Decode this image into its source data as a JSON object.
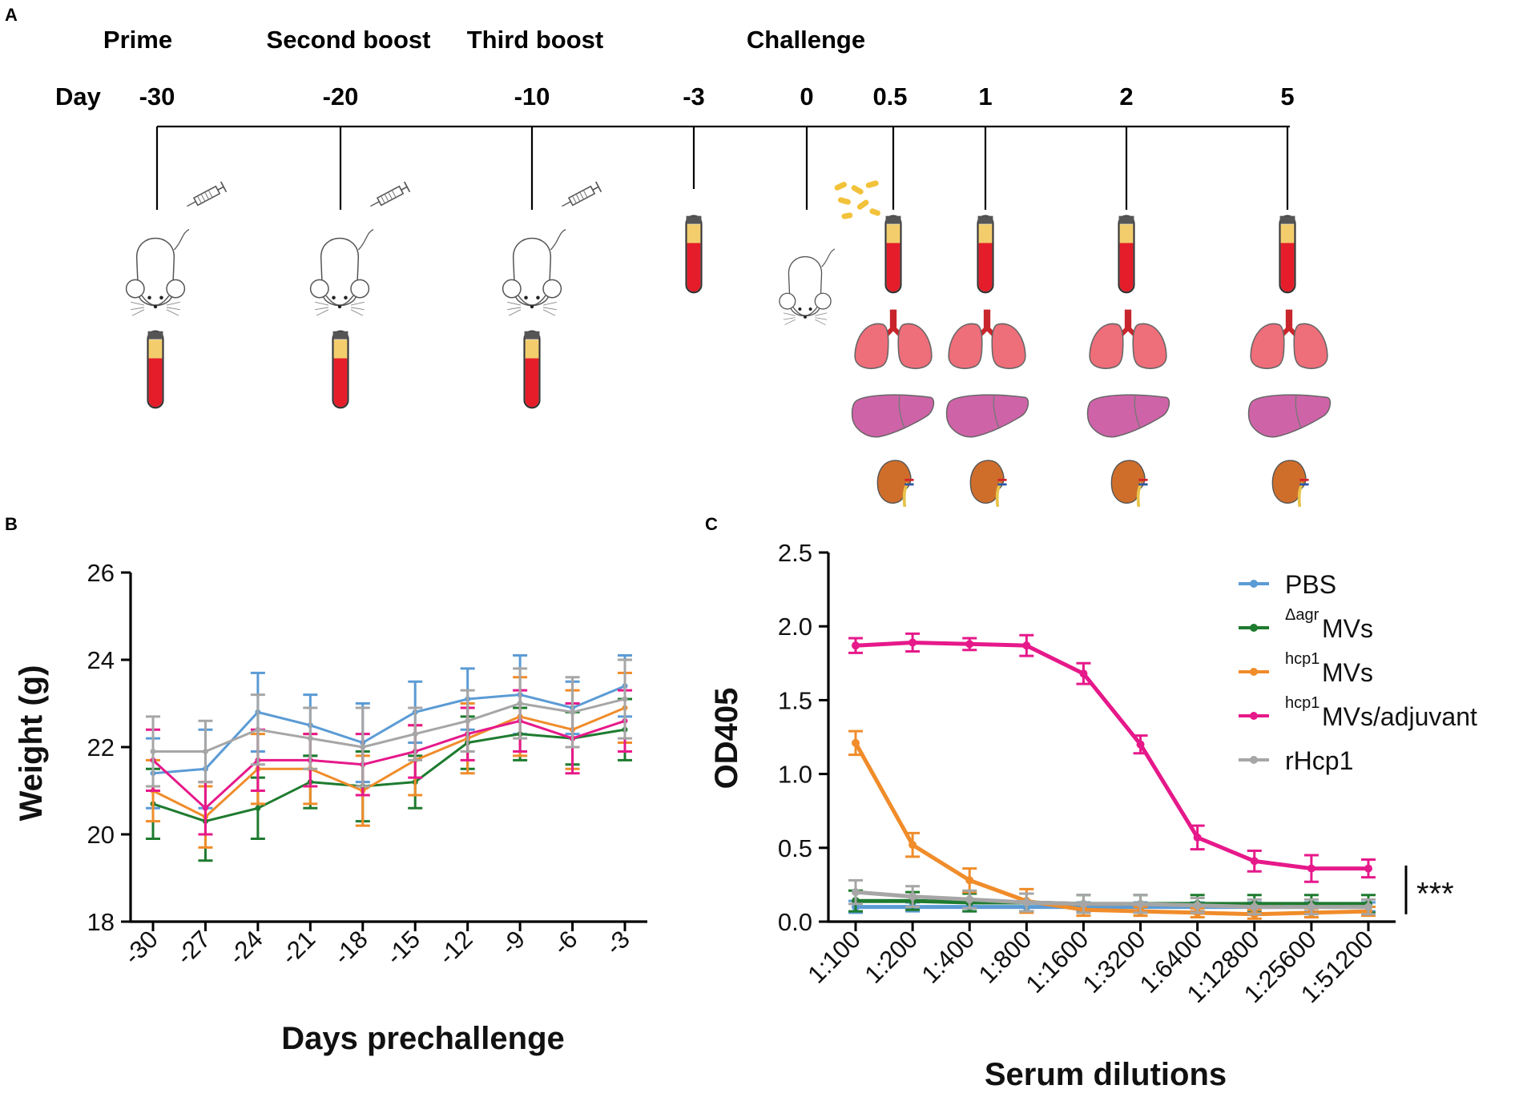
{
  "panel_a": {
    "label": "A",
    "phases": [
      "Prime",
      "Second boost",
      "Third boost",
      "Challenge"
    ],
    "day_label": "Day",
    "days": [
      "-30",
      "-20",
      "-10",
      "-3",
      "0",
      "0.5",
      "1",
      "2",
      "5"
    ]
  },
  "chart_data": [
    {
      "panel": "B",
      "type": "line",
      "xlabel": "Days prechallenge",
      "ylabel": "Weight (g)",
      "categories": [
        "-30",
        "-27",
        "-24",
        "-21",
        "-18",
        "-15",
        "-12",
        "-9",
        "-6",
        "-3"
      ],
      "ylim": [
        18,
        26
      ],
      "yticks": [
        "18",
        "20",
        "22",
        "24",
        "26"
      ],
      "series": [
        {
          "name": "PBS",
          "color": "#5b9bd5",
          "values": [
            21.4,
            21.5,
            22.8,
            22.5,
            22.1,
            22.8,
            23.1,
            23.2,
            22.9,
            23.4
          ],
          "errors": [
            0.8,
            0.9,
            0.9,
            0.7,
            0.9,
            0.7,
            0.7,
            0.9,
            0.6,
            0.7
          ]
        },
        {
          "name": "Δagr MVs",
          "color": "#1e7b2f",
          "values": [
            20.7,
            20.3,
            20.6,
            21.2,
            21.1,
            21.2,
            22.1,
            22.3,
            22.2,
            22.4
          ],
          "errors": [
            0.8,
            0.9,
            0.7,
            0.6,
            0.8,
            0.6,
            0.6,
            0.6,
            0.6,
            0.7
          ]
        },
        {
          "name": "hcp1 MVs",
          "color": "#f08c2a",
          "values": [
            21.0,
            20.4,
            21.5,
            21.5,
            21.0,
            21.7,
            22.2,
            22.7,
            22.4,
            22.9
          ],
          "errors": [
            0.7,
            0.7,
            0.8,
            0.8,
            0.8,
            0.8,
            0.8,
            0.9,
            0.9,
            0.8
          ]
        },
        {
          "name": "hcp1 MVs/adjuvant",
          "color": "#e6198a",
          "values": [
            21.7,
            20.6,
            21.7,
            21.7,
            21.6,
            21.9,
            22.3,
            22.6,
            22.2,
            22.6
          ],
          "errors": [
            0.7,
            0.6,
            0.7,
            0.6,
            0.7,
            0.6,
            0.6,
            0.7,
            0.8,
            0.7
          ]
        },
        {
          "name": "rHcp1",
          "color": "#a6a6a6",
          "values": [
            21.9,
            21.9,
            22.4,
            22.2,
            22.0,
            22.3,
            22.6,
            23.0,
            22.8,
            23.1
          ],
          "errors": [
            0.8,
            0.7,
            0.8,
            0.7,
            0.9,
            0.6,
            0.7,
            0.8,
            0.8,
            0.9
          ]
        }
      ]
    },
    {
      "panel": "C",
      "type": "line",
      "xlabel": "Serum dilutions",
      "ylabel": "OD405",
      "categories": [
        "1:100",
        "1:200",
        "1:400",
        "1:800",
        "1:1600",
        "1:3200",
        "1:6400",
        "1:12800",
        "1:25600",
        "1:51200"
      ],
      "ylim": [
        0,
        2.5
      ],
      "yticks": [
        "0.0",
        "0.5",
        "1.0",
        "1.5",
        "2.0",
        "2.5"
      ],
      "annotation": "***",
      "series": [
        {
          "name": "PBS",
          "prefix": "",
          "label": "PBS",
          "color": "#5b9bd5",
          "values": [
            0.1,
            0.1,
            0.1,
            0.1,
            0.1,
            0.1,
            0.1,
            0.1,
            0.1,
            0.1
          ],
          "errors": [
            0.04,
            0.03,
            0.03,
            0.03,
            0.03,
            0.03,
            0.03,
            0.03,
            0.03,
            0.03
          ]
        },
        {
          "name": "Δagr MVs",
          "prefix": "Δagr",
          "label": "MVs",
          "color": "#1e7b2f",
          "values": [
            0.14,
            0.14,
            0.13,
            0.13,
            0.12,
            0.12,
            0.12,
            0.12,
            0.12,
            0.12
          ],
          "errors": [
            0.07,
            0.06,
            0.06,
            0.06,
            0.06,
            0.06,
            0.06,
            0.06,
            0.06,
            0.06
          ]
        },
        {
          "name": "hcp1 MVs",
          "prefix": "hcp1",
          "label": "MVs",
          "color": "#f08c2a",
          "values": [
            1.21,
            0.52,
            0.28,
            0.14,
            0.08,
            0.07,
            0.06,
            0.05,
            0.06,
            0.07
          ],
          "errors": [
            0.08,
            0.08,
            0.08,
            0.08,
            0.04,
            0.03,
            0.03,
            0.03,
            0.03,
            0.03
          ]
        },
        {
          "name": "hcp1 MVs/adjuvant",
          "prefix": "hcp1",
          "label": "MVs/adjuvant",
          "color": "#e6198a",
          "values": [
            1.87,
            1.89,
            1.88,
            1.87,
            1.68,
            1.2,
            0.57,
            0.41,
            0.36,
            0.36
          ],
          "errors": [
            0.05,
            0.06,
            0.04,
            0.07,
            0.07,
            0.06,
            0.08,
            0.07,
            0.09,
            0.06
          ]
        },
        {
          "name": "rHcp1",
          "prefix": "",
          "label": "rHcp1",
          "color": "#a6a6a6",
          "values": [
            0.2,
            0.17,
            0.15,
            0.13,
            0.12,
            0.12,
            0.11,
            0.1,
            0.1,
            0.1
          ],
          "errors": [
            0.08,
            0.07,
            0.06,
            0.06,
            0.06,
            0.06,
            0.05,
            0.05,
            0.05,
            0.05
          ]
        }
      ]
    }
  ]
}
